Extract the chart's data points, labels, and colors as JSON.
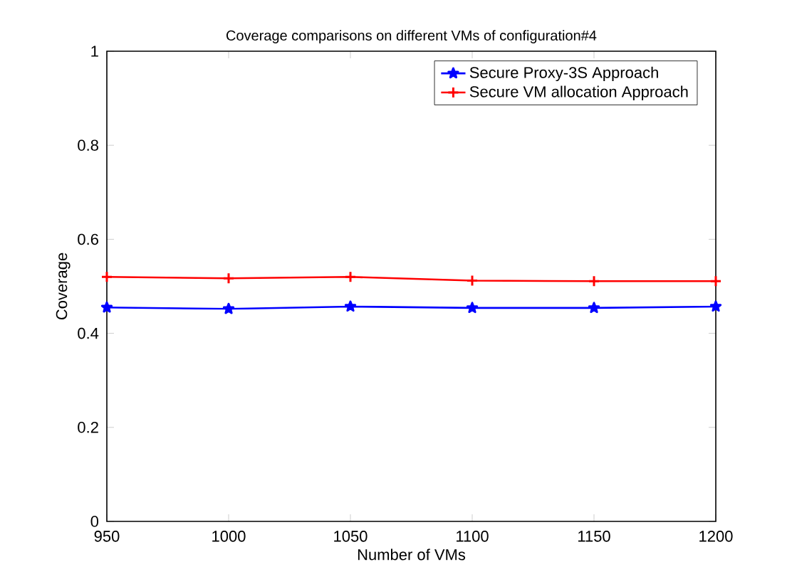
{
  "chart_data": {
    "type": "line",
    "title": "Coverage comparisons on different VMs of configuration#4",
    "xlabel": "Number of VMs",
    "ylabel": "Coverage",
    "x": [
      950,
      1000,
      1050,
      1100,
      1150,
      1200
    ],
    "series": [
      {
        "name": "Secure Proxy-3S Approach",
        "color": "#0000ff",
        "marker": "star",
        "values": [
          0.455,
          0.452,
          0.457,
          0.454,
          0.454,
          0.457
        ]
      },
      {
        "name": "Secure VM allocation Approach",
        "color": "#ff0000",
        "marker": "cross",
        "values": [
          0.52,
          0.517,
          0.52,
          0.512,
          0.511,
          0.511
        ]
      }
    ],
    "xlim": [
      950,
      1200
    ],
    "xticks": [
      950,
      1000,
      1050,
      1100,
      1150,
      1200
    ],
    "ylim": [
      0,
      1
    ],
    "yticks": [
      0,
      0.2,
      0.4,
      0.6,
      0.8,
      1
    ],
    "legend": "top right",
    "grid": false,
    "line_style": "solid"
  }
}
